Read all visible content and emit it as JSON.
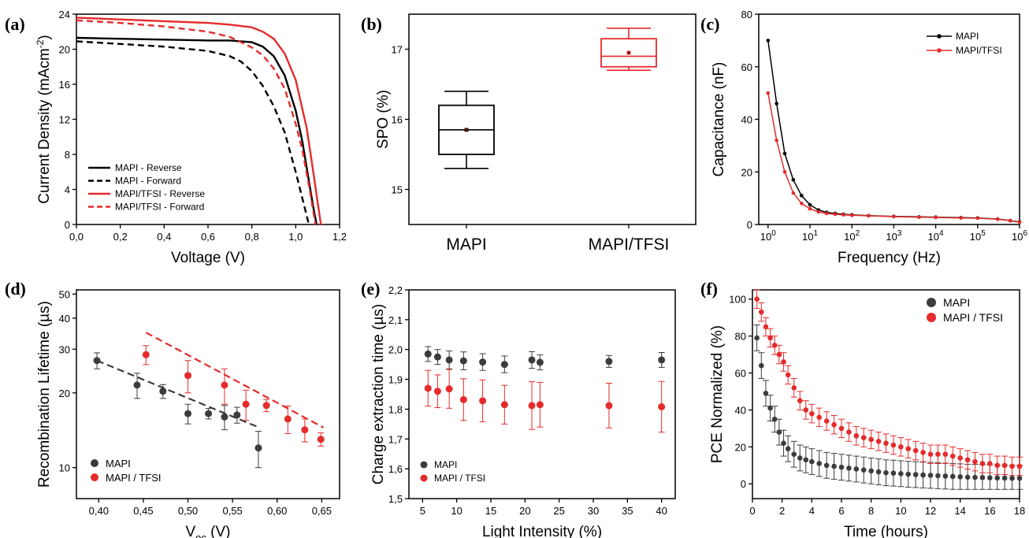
{
  "chart_data": [
    {
      "panel_label": "(a)",
      "type": "line",
      "xlabel": "Voltage (V)",
      "ylabel": "Current Density (mAcm-2)",
      "xlim": [
        0,
        1.2
      ],
      "ylim": [
        0,
        24
      ],
      "xticks": [
        "0,0",
        "0,2",
        "0,4",
        "0,6",
        "0,8",
        "1,0",
        "1,2"
      ],
      "yticks": [
        "0",
        "4",
        "8",
        "12",
        "16",
        "20",
        "24"
      ],
      "legend_position": "bottom-left",
      "series": [
        {
          "name": "MAPI - Reverse",
          "color": "#000000",
          "dash": false,
          "x": [
            0,
            0.2,
            0.4,
            0.6,
            0.7,
            0.8,
            0.85,
            0.9,
            0.95,
            1.0,
            1.03,
            1.06,
            1.08,
            1.095
          ],
          "y": [
            21.3,
            21.2,
            21.1,
            21.0,
            21.0,
            20.8,
            20.3,
            19.2,
            17.0,
            13.0,
            9.5,
            5.0,
            2.0,
            0
          ]
        },
        {
          "name": "MAPI - Forward",
          "color": "#000000",
          "dash": true,
          "x": [
            0,
            0.2,
            0.4,
            0.6,
            0.7,
            0.75,
            0.8,
            0.85,
            0.9,
            0.95,
            1.0,
            1.03,
            1.06
          ],
          "y": [
            20.9,
            20.6,
            20.3,
            19.8,
            19.2,
            18.6,
            17.5,
            15.8,
            13.5,
            10.5,
            6.0,
            3.0,
            0
          ]
        },
        {
          "name": "MAPI/TFSI - Reverse",
          "color": "#e52b2b",
          "dash": false,
          "x": [
            0,
            0.2,
            0.4,
            0.6,
            0.7,
            0.8,
            0.85,
            0.9,
            0.95,
            1.0,
            1.05,
            1.08,
            1.1,
            1.115
          ],
          "y": [
            23.6,
            23.4,
            23.2,
            23.0,
            22.8,
            22.5,
            22.0,
            21.2,
            19.5,
            16.5,
            11.0,
            6.0,
            2.5,
            0
          ]
        },
        {
          "name": "MAPI/TFSI - Forward",
          "color": "#e52b2b",
          "dash": true,
          "x": [
            0,
            0.2,
            0.4,
            0.6,
            0.7,
            0.8,
            0.85,
            0.9,
            0.95,
            1.0,
            1.03,
            1.06,
            1.09
          ],
          "y": [
            23.3,
            23.0,
            22.6,
            22.0,
            21.4,
            20.2,
            19.3,
            17.8,
            15.5,
            11.5,
            8.5,
            4.5,
            0
          ]
        }
      ]
    },
    {
      "panel_label": "(b)",
      "type": "box",
      "xlabel": "",
      "ylabel": "SPO (%)",
      "ylim": [
        14.5,
        17.5
      ],
      "yticks": [
        "15",
        "16",
        "17"
      ],
      "categories": [
        "MAPI",
        "MAPI/TFSI"
      ],
      "boxes": [
        {
          "category": "MAPI",
          "color": "#000000",
          "min": 15.3,
          "q1": 15.5,
          "median": 15.85,
          "mean": 15.85,
          "q3": 16.2,
          "max": 16.4
        },
        {
          "category": "MAPI/TFSI",
          "color": "#e52b2b",
          "min": 16.7,
          "q1": 16.75,
          "median": 16.9,
          "mean": 16.95,
          "q3": 17.15,
          "max": 17.3
        }
      ]
    },
    {
      "panel_label": "(c)",
      "type": "line",
      "xlabel": "Frequency (Hz)",
      "ylabel": "Capacitance (nF)",
      "xscale": "log",
      "xlim": [
        0.6,
        1000000
      ],
      "ylim": [
        0,
        80
      ],
      "xticks": [
        "10^0",
        "10^1",
        "10^2",
        "10^3",
        "10^4",
        "10^5",
        "10^6"
      ],
      "yticks": [
        "0",
        "20",
        "40",
        "60",
        "80"
      ],
      "legend_position": "top-right",
      "series": [
        {
          "name": "MAPI",
          "color": "#000000",
          "x": [
            1,
            1.6,
            2.5,
            4,
            6.3,
            10,
            16,
            25,
            40,
            63,
            100,
            250,
            1000,
            4000,
            10000,
            40000,
            100000,
            300000,
            600000,
            1000000
          ],
          "y": [
            70,
            46,
            27,
            17,
            11,
            7.5,
            5.5,
            4.6,
            4.2,
            3.9,
            3.7,
            3.4,
            3.1,
            2.9,
            2.8,
            2.6,
            2.5,
            2.1,
            1.5,
            1.0
          ]
        },
        {
          "name": "MAPI/TFSI",
          "color": "#e52b2b",
          "x": [
            1,
            1.6,
            2.5,
            4,
            6.3,
            10,
            16,
            25,
            40,
            63,
            100,
            250,
            1000,
            4000,
            10000,
            40000,
            100000,
            300000,
            600000,
            1000000
          ],
          "y": [
            50,
            32,
            20,
            12,
            8,
            6,
            4.8,
            4.2,
            3.9,
            3.7,
            3.5,
            3.3,
            3.0,
            2.8,
            2.7,
            2.5,
            2.4,
            2.0,
            1.4,
            0.9
          ]
        }
      ]
    },
    {
      "panel_label": "(d)",
      "type": "scatter",
      "xlabel": "Voc (V)",
      "ylabel": "Recombination Lifetime (µs)",
      "yscale": "log",
      "xlim": [
        0.375,
        0.67
      ],
      "ylim": [
        7.5,
        52
      ],
      "xticks": [
        "0,40",
        "0,45",
        "0,50",
        "0,55",
        "0,60",
        "0,65"
      ],
      "yticks": [
        "10",
        "20",
        "30",
        "40",
        "50"
      ],
      "legend_position": "bottom-left",
      "series": [
        {
          "name": "MAPI",
          "color": "#3c3c3c",
          "x": [
            0.398,
            0.443,
            0.472,
            0.5,
            0.523,
            0.541,
            0.555,
            0.579
          ],
          "y": [
            27,
            21.5,
            20.3,
            16.5,
            16.5,
            16,
            16.3,
            12
          ],
          "err": [
            2,
            2.5,
            1.3,
            1.5,
            0.8,
            1.8,
            1.2,
            2
          ],
          "fit": {
            "x": [
              0.398,
              0.58
            ],
            "y": [
              27,
              14.5
            ]
          }
        },
        {
          "name": "MAPI / TFSI",
          "color": "#e52b2b",
          "x": [
            0.453,
            0.5,
            0.541,
            0.565,
            0.588,
            0.612,
            0.631,
            0.649
          ],
          "y": [
            28.5,
            23.5,
            21.5,
            18,
            17.8,
            15.7,
            14.2,
            13
          ],
          "err": [
            2.5,
            3.5,
            3.5,
            2.5,
            1,
            2,
            1.5,
            0.8
          ],
          "fit": {
            "x": [
              0.453,
              0.652
            ],
            "y": [
              35,
              14.5
            ]
          }
        }
      ]
    },
    {
      "panel_label": "(e)",
      "type": "scatter",
      "xlabel": "Light Intensity (%)",
      "ylabel": "Charge extraction time (µs)",
      "xlim": [
        3,
        42
      ],
      "ylim": [
        1.5,
        2.2
      ],
      "xticks": [
        "5",
        "10",
        "15",
        "20",
        "25",
        "30",
        "35",
        "40"
      ],
      "yticks": [
        "1,5",
        "1,6",
        "1,7",
        "1,8",
        "1,9",
        "2,0",
        "2,1",
        "2,2"
      ],
      "legend_position": "bottom-left",
      "series": [
        {
          "name": "MAPI",
          "color": "#3c3c3c",
          "x": [
            5.8,
            7.2,
            8.9,
            11,
            13.8,
            17,
            21,
            22.2,
            32.3,
            40
          ],
          "y": [
            1.985,
            1.975,
            1.965,
            1.962,
            1.958,
            1.95,
            1.965,
            1.957,
            1.96,
            1.965
          ],
          "err": [
            0.025,
            0.025,
            0.03,
            0.03,
            0.028,
            0.028,
            0.028,
            0.025,
            0.02,
            0.025
          ]
        },
        {
          "name": "MAPI / TFSI",
          "color": "#e52b2b",
          "x": [
            5.8,
            7.2,
            8.9,
            11,
            13.8,
            17,
            21,
            22.2,
            32.3,
            40
          ],
          "y": [
            1.87,
            1.86,
            1.868,
            1.832,
            1.828,
            1.815,
            1.812,
            1.815,
            1.812,
            1.808
          ],
          "err": [
            0.06,
            0.055,
            0.065,
            0.07,
            0.07,
            0.065,
            0.08,
            0.075,
            0.075,
            0.085
          ]
        }
      ]
    },
    {
      "panel_label": "(f)",
      "type": "scatter",
      "xlabel": "Time (hours)",
      "ylabel": "PCE Normalized (%)",
      "xlim": [
        0,
        18
      ],
      "ylim": [
        -8,
        105
      ],
      "xticks": [
        "0",
        "2",
        "4",
        "6",
        "8",
        "10",
        "12",
        "14",
        "16",
        "18"
      ],
      "yticks": [
        "0",
        "20",
        "40",
        "60",
        "80",
        "100"
      ],
      "legend_position": "top-right",
      "series": [
        {
          "name": "MAPI",
          "color": "#3c3c3c",
          "x": [
            0.3,
            0.6,
            0.9,
            1.2,
            1.5,
            1.8,
            2.1,
            2.4,
            2.8,
            3.2,
            3.6,
            4,
            4.5,
            5,
            5.5,
            6,
            6.5,
            7,
            7.5,
            8,
            8.5,
            9,
            9.5,
            10,
            10.5,
            11,
            11.5,
            12,
            12.5,
            13,
            13.5,
            14,
            14.5,
            15,
            15.5,
            16,
            16.5,
            17,
            17.5,
            18
          ],
          "y": [
            79,
            64,
            49,
            41,
            35,
            28,
            22,
            19,
            16,
            14,
            13,
            12,
            11,
            10,
            9.5,
            9,
            8.5,
            8,
            7.5,
            7,
            6.5,
            6,
            5.8,
            5.5,
            5.2,
            5,
            4.8,
            4.6,
            4.4,
            4.2,
            4,
            3.8,
            3.6,
            3.5,
            3.4,
            3.3,
            3.2,
            3.1,
            3.0,
            3.0
          ],
          "err": 7
        },
        {
          "name": "MAPI / TFSI",
          "color": "#e52b2b",
          "x": [
            0.3,
            0.6,
            0.9,
            1.2,
            1.5,
            1.8,
            2.1,
            2.4,
            2.8,
            3.2,
            3.6,
            4,
            4.5,
            5,
            5.5,
            6,
            6.5,
            7,
            7.5,
            8,
            8.5,
            9,
            9.5,
            10,
            10.5,
            11,
            11.5,
            12,
            12.5,
            13,
            13.5,
            14,
            14.5,
            15,
            15.5,
            16,
            16.5,
            17,
            17.5,
            18
          ],
          "y": [
            100,
            93,
            85,
            79,
            75,
            70,
            66,
            59,
            52,
            45,
            40,
            38,
            36,
            34,
            32,
            30,
            28,
            26,
            25,
            24,
            23,
            22,
            21,
            20,
            19,
            18,
            17,
            16,
            16,
            16,
            15,
            14,
            13,
            12,
            11,
            11,
            10,
            10,
            9.5,
            9.5
          ],
          "err": 5
        }
      ]
    }
  ]
}
